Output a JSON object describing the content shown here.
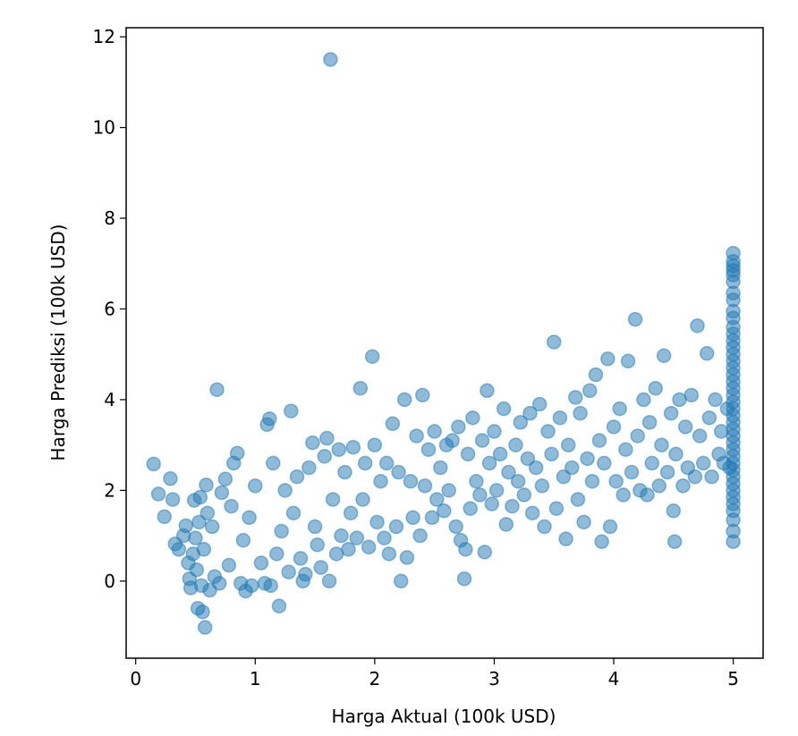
{
  "chart_data": {
    "type": "scatter",
    "title": "",
    "xlabel": "Harga Aktual (100k USD)",
    "ylabel": "Harga Prediksi (100k USD)",
    "xlim": [
      -0.08,
      5.25
    ],
    "ylim": [
      -1.7,
      12.2
    ],
    "xticks": [
      0,
      1,
      2,
      3,
      4,
      5
    ],
    "xtick_labels": [
      "0",
      "1",
      "2",
      "3",
      "4",
      "5"
    ],
    "yticks": [
      0,
      2,
      4,
      6,
      8,
      10,
      12
    ],
    "ytick_labels": [
      "0",
      "2",
      "4",
      "6",
      "8",
      "10",
      "12"
    ],
    "grid": false,
    "legend": false,
    "color": "#1f77b4",
    "alpha": 0.5,
    "series": [
      {
        "points": [
          [
            0.15,
            2.58
          ],
          [
            0.19,
            1.92
          ],
          [
            0.24,
            1.42
          ],
          [
            0.29,
            2.26
          ],
          [
            0.31,
            1.8
          ],
          [
            0.33,
            0.82
          ],
          [
            0.36,
            0.7
          ],
          [
            0.4,
            1.0
          ],
          [
            0.42,
            1.22
          ],
          [
            0.44,
            0.4
          ],
          [
            0.45,
            0.05
          ],
          [
            0.46,
            -0.15
          ],
          [
            0.48,
            0.6
          ],
          [
            0.49,
            1.78
          ],
          [
            0.5,
            0.95
          ],
          [
            0.51,
            0.25
          ],
          [
            0.52,
            -0.6
          ],
          [
            0.53,
            1.3
          ],
          [
            0.54,
            1.85
          ],
          [
            0.55,
            -0.1
          ],
          [
            0.56,
            -0.68
          ],
          [
            0.57,
            0.7
          ],
          [
            0.58,
            -1.02
          ],
          [
            0.59,
            2.12
          ],
          [
            0.6,
            1.5
          ],
          [
            0.62,
            -0.2
          ],
          [
            0.64,
            1.2
          ],
          [
            0.66,
            0.1
          ],
          [
            0.68,
            4.22
          ],
          [
            0.7,
            -0.05
          ],
          [
            0.72,
            1.95
          ],
          [
            0.75,
            2.25
          ],
          [
            0.78,
            0.35
          ],
          [
            0.8,
            1.65
          ],
          [
            0.82,
            2.6
          ],
          [
            0.85,
            2.82
          ],
          [
            0.88,
            -0.05
          ],
          [
            0.9,
            0.9
          ],
          [
            0.92,
            -0.22
          ],
          [
            0.95,
            1.4
          ],
          [
            0.97,
            -0.1
          ],
          [
            1.0,
            2.1
          ],
          [
            1.05,
            0.4
          ],
          [
            1.08,
            -0.05
          ],
          [
            1.1,
            3.45
          ],
          [
            1.12,
            3.58
          ],
          [
            1.13,
            -0.1
          ],
          [
            1.15,
            2.6
          ],
          [
            1.18,
            0.6
          ],
          [
            1.2,
            -0.55
          ],
          [
            1.22,
            1.1
          ],
          [
            1.25,
            2.0
          ],
          [
            1.28,
            0.2
          ],
          [
            1.3,
            3.75
          ],
          [
            1.32,
            1.5
          ],
          [
            1.35,
            2.3
          ],
          [
            1.38,
            0.5
          ],
          [
            1.4,
            0.0
          ],
          [
            1.42,
            0.15
          ],
          [
            1.45,
            2.5
          ],
          [
            1.48,
            3.05
          ],
          [
            1.5,
            1.2
          ],
          [
            1.52,
            0.8
          ],
          [
            1.55,
            0.3
          ],
          [
            1.58,
            2.75
          ],
          [
            1.6,
            3.15
          ],
          [
            1.62,
            0.0
          ],
          [
            1.63,
            11.5
          ],
          [
            1.65,
            1.8
          ],
          [
            1.68,
            0.6
          ],
          [
            1.7,
            2.9
          ],
          [
            1.72,
            1.0
          ],
          [
            1.75,
            2.4
          ],
          [
            1.78,
            0.7
          ],
          [
            1.8,
            1.5
          ],
          [
            1.82,
            2.95
          ],
          [
            1.85,
            0.95
          ],
          [
            1.88,
            4.25
          ],
          [
            1.9,
            1.8
          ],
          [
            1.92,
            2.6
          ],
          [
            1.95,
            0.75
          ],
          [
            1.98,
            4.95
          ],
          [
            2.0,
            3.0
          ],
          [
            2.02,
            1.3
          ],
          [
            2.05,
            2.2
          ],
          [
            2.08,
            0.95
          ],
          [
            2.1,
            2.6
          ],
          [
            2.12,
            0.6
          ],
          [
            2.15,
            3.47
          ],
          [
            2.18,
            1.2
          ],
          [
            2.2,
            2.4
          ],
          [
            2.22,
            0.0
          ],
          [
            2.25,
            4.0
          ],
          [
            2.27,
            0.52
          ],
          [
            2.3,
            2.2
          ],
          [
            2.32,
            1.4
          ],
          [
            2.35,
            3.2
          ],
          [
            2.38,
            1.0
          ],
          [
            2.4,
            4.1
          ],
          [
            2.42,
            2.1
          ],
          [
            2.45,
            2.9
          ],
          [
            2.48,
            1.4
          ],
          [
            2.5,
            3.3
          ],
          [
            2.52,
            1.8
          ],
          [
            2.55,
            2.5
          ],
          [
            2.58,
            1.55
          ],
          [
            2.6,
            3.0
          ],
          [
            2.62,
            2.0
          ],
          [
            2.65,
            3.1
          ],
          [
            2.68,
            1.2
          ],
          [
            2.7,
            3.4
          ],
          [
            2.72,
            0.9
          ],
          [
            2.75,
            0.05
          ],
          [
            2.76,
            0.7
          ],
          [
            2.78,
            2.8
          ],
          [
            2.8,
            1.6
          ],
          [
            2.82,
            3.6
          ],
          [
            2.85,
            2.2
          ],
          [
            2.88,
            1.9
          ],
          [
            2.9,
            3.1
          ],
          [
            2.92,
            0.64
          ],
          [
            2.94,
            4.2
          ],
          [
            2.96,
            2.6
          ],
          [
            2.98,
            1.7
          ],
          [
            3.0,
            3.3
          ],
          [
            3.02,
            2.0
          ],
          [
            3.05,
            2.8
          ],
          [
            3.08,
            3.8
          ],
          [
            3.1,
            1.25
          ],
          [
            3.12,
            2.4
          ],
          [
            3.15,
            1.65
          ],
          [
            3.18,
            3.0
          ],
          [
            3.2,
            2.2
          ],
          [
            3.22,
            3.5
          ],
          [
            3.25,
            1.9
          ],
          [
            3.28,
            2.7
          ],
          [
            3.3,
            3.7
          ],
          [
            3.32,
            1.5
          ],
          [
            3.35,
            2.5
          ],
          [
            3.38,
            3.9
          ],
          [
            3.4,
            2.1
          ],
          [
            3.42,
            1.2
          ],
          [
            3.45,
            3.3
          ],
          [
            3.48,
            2.8
          ],
          [
            3.5,
            5.27
          ],
          [
            3.52,
            1.6
          ],
          [
            3.55,
            3.6
          ],
          [
            3.58,
            2.3
          ],
          [
            3.6,
            0.93
          ],
          [
            3.62,
            3.0
          ],
          [
            3.65,
            2.5
          ],
          [
            3.68,
            4.05
          ],
          [
            3.7,
            1.8
          ],
          [
            3.72,
            3.7
          ],
          [
            3.75,
            1.3
          ],
          [
            3.78,
            2.7
          ],
          [
            3.8,
            4.2
          ],
          [
            3.82,
            2.2
          ],
          [
            3.85,
            4.55
          ],
          [
            3.88,
            3.1
          ],
          [
            3.9,
            0.87
          ],
          [
            3.92,
            2.6
          ],
          [
            3.95,
            4.9
          ],
          [
            3.97,
            1.2
          ],
          [
            4.0,
            3.4
          ],
          [
            4.02,
            2.2
          ],
          [
            4.05,
            3.8
          ],
          [
            4.08,
            1.9
          ],
          [
            4.1,
            2.9
          ],
          [
            4.12,
            4.85
          ],
          [
            4.15,
            2.4
          ],
          [
            4.18,
            5.77
          ],
          [
            4.2,
            3.2
          ],
          [
            4.22,
            2.0
          ],
          [
            4.25,
            4.0
          ],
          [
            4.28,
            1.9
          ],
          [
            4.3,
            3.5
          ],
          [
            4.32,
            2.6
          ],
          [
            4.35,
            4.25
          ],
          [
            4.38,
            2.1
          ],
          [
            4.4,
            3.0
          ],
          [
            4.42,
            4.97
          ],
          [
            4.45,
            2.4
          ],
          [
            4.48,
            3.7
          ],
          [
            4.5,
            1.55
          ],
          [
            4.51,
            0.87
          ],
          [
            4.52,
            2.8
          ],
          [
            4.55,
            4.0
          ],
          [
            4.58,
            2.1
          ],
          [
            4.6,
            3.4
          ],
          [
            4.62,
            2.5
          ],
          [
            4.65,
            4.1
          ],
          [
            4.68,
            2.3
          ],
          [
            4.7,
            5.63
          ],
          [
            4.72,
            3.2
          ],
          [
            4.75,
            2.6
          ],
          [
            4.78,
            5.02
          ],
          [
            4.8,
            3.6
          ],
          [
            4.82,
            2.3
          ],
          [
            4.85,
            4.0
          ],
          [
            4.88,
            2.8
          ],
          [
            4.9,
            3.3
          ],
          [
            4.92,
            2.6
          ],
          [
            4.95,
            3.8
          ],
          [
            4.97,
            2.5
          ],
          [
            5.0,
            7.23
          ],
          [
            5.0,
            7.05
          ],
          [
            5.0,
            6.95
          ],
          [
            5.0,
            6.85
          ],
          [
            5.0,
            6.75
          ],
          [
            5.0,
            6.6
          ],
          [
            5.0,
            6.35
          ],
          [
            5.0,
            6.2
          ],
          [
            5.0,
            5.95
          ],
          [
            5.0,
            5.8
          ],
          [
            5.0,
            5.6
          ],
          [
            5.0,
            5.45
          ],
          [
            5.0,
            5.3
          ],
          [
            5.0,
            5.15
          ],
          [
            5.0,
            5.0
          ],
          [
            5.0,
            4.85
          ],
          [
            5.0,
            4.7
          ],
          [
            5.0,
            4.55
          ],
          [
            5.0,
            4.4
          ],
          [
            5.0,
            4.25
          ],
          [
            5.0,
            4.1
          ],
          [
            5.0,
            3.95
          ],
          [
            5.0,
            3.8
          ],
          [
            5.0,
            3.65
          ],
          [
            5.0,
            3.5
          ],
          [
            5.0,
            3.35
          ],
          [
            5.0,
            3.2
          ],
          [
            5.0,
            3.05
          ],
          [
            5.0,
            2.9
          ],
          [
            5.0,
            2.75
          ],
          [
            5.0,
            2.6
          ],
          [
            5.0,
            2.45
          ],
          [
            5.0,
            2.3
          ],
          [
            5.0,
            2.15
          ],
          [
            5.0,
            2.0
          ],
          [
            5.0,
            1.85
          ],
          [
            5.0,
            1.7
          ],
          [
            5.0,
            1.55
          ],
          [
            5.0,
            1.35
          ],
          [
            5.0,
            1.1
          ],
          [
            5.0,
            0.87
          ]
        ]
      }
    ]
  }
}
